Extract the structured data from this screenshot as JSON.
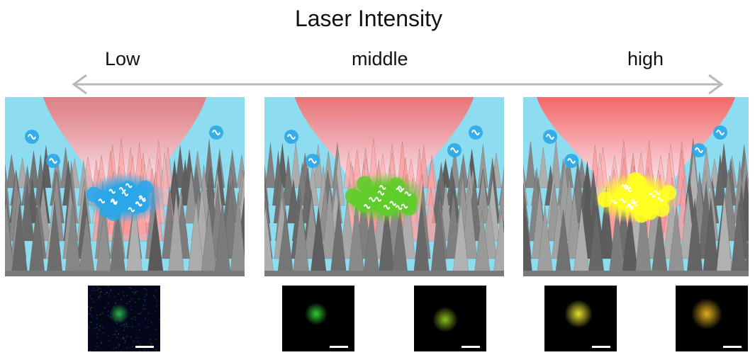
{
  "title": "Laser Intensity",
  "labels": {
    "low": "Low",
    "middle": "middle",
    "high": "high"
  },
  "panels": [
    {
      "level": "low",
      "cluster_color": "#2aa7e8",
      "beam_spread": 0.55
    },
    {
      "level": "middle",
      "cluster_color": "#5fcc2a",
      "beam_spread": 0.75
    },
    {
      "level": "high",
      "cluster_color": "#ffff22",
      "beam_spread": 1.0
    }
  ],
  "micrographs": [
    {
      "level": "low",
      "color": "#2bb24c",
      "bg": "noise-blue"
    },
    {
      "level": "middle",
      "color": "#33cc33",
      "bg": "dark"
    },
    {
      "level": "middle",
      "color": "#88bb22",
      "bg": "dark"
    },
    {
      "level": "high",
      "color": "#e6e033",
      "bg": "dark"
    },
    {
      "level": "high",
      "color": "#e0b020",
      "bg": "dark"
    }
  ],
  "colors": {
    "water": "#8ddcef",
    "beam": "#ff5a5a",
    "spikes": "#8a8a8a",
    "arrow": "#b9b9b9"
  }
}
